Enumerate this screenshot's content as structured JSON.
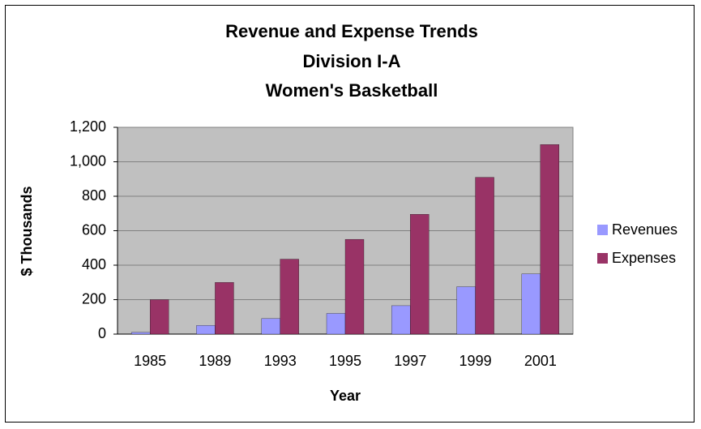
{
  "chart_data": {
    "type": "bar",
    "title": [
      "Revenue and Expense Trends",
      "Division I-A",
      "Women's Basketball"
    ],
    "y_label": "$ Thousands",
    "x_label": "Year",
    "categories": [
      "1985",
      "1989",
      "1993",
      "1995",
      "1997",
      "1999",
      "2001"
    ],
    "series": [
      {
        "name": "Revenues",
        "color": "#9999ff",
        "values": [
          10,
          50,
          90,
          120,
          165,
          275,
          350
        ]
      },
      {
        "name": "Expenses",
        "color": "#993366",
        "values": [
          200,
          300,
          435,
          550,
          695,
          910,
          1100
        ]
      }
    ],
    "ylim": [
      0,
      1200
    ],
    "yticks": [
      0,
      200,
      400,
      600,
      800,
      {
        "value": 1000,
        "label": "1,000"
      },
      {
        "value": 1200,
        "label": "1,200"
      }
    ],
    "grid": true,
    "legend": "right"
  }
}
